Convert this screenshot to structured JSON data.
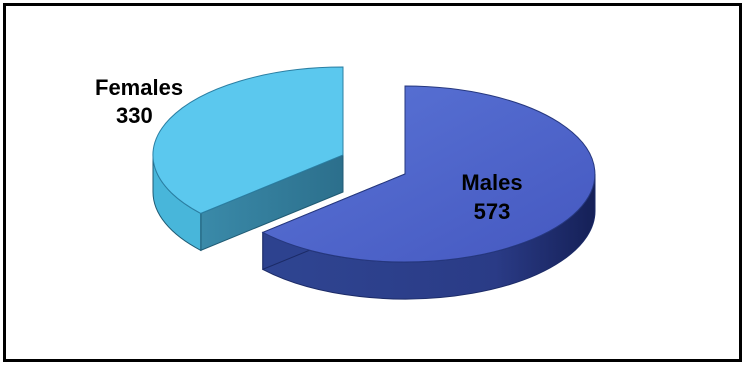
{
  "chart_data": {
    "type": "pie",
    "style": "3d-exploded",
    "categories": [
      "Females",
      "Males"
    ],
    "values": [
      330,
      573
    ],
    "colors": {
      "Females": "#5bc8ee",
      "Males": "#4a63c9"
    },
    "legend": "none",
    "data_labels": [
      {
        "category": "Females",
        "value": "330"
      },
      {
        "category": "Males",
        "value": "573"
      }
    ]
  }
}
